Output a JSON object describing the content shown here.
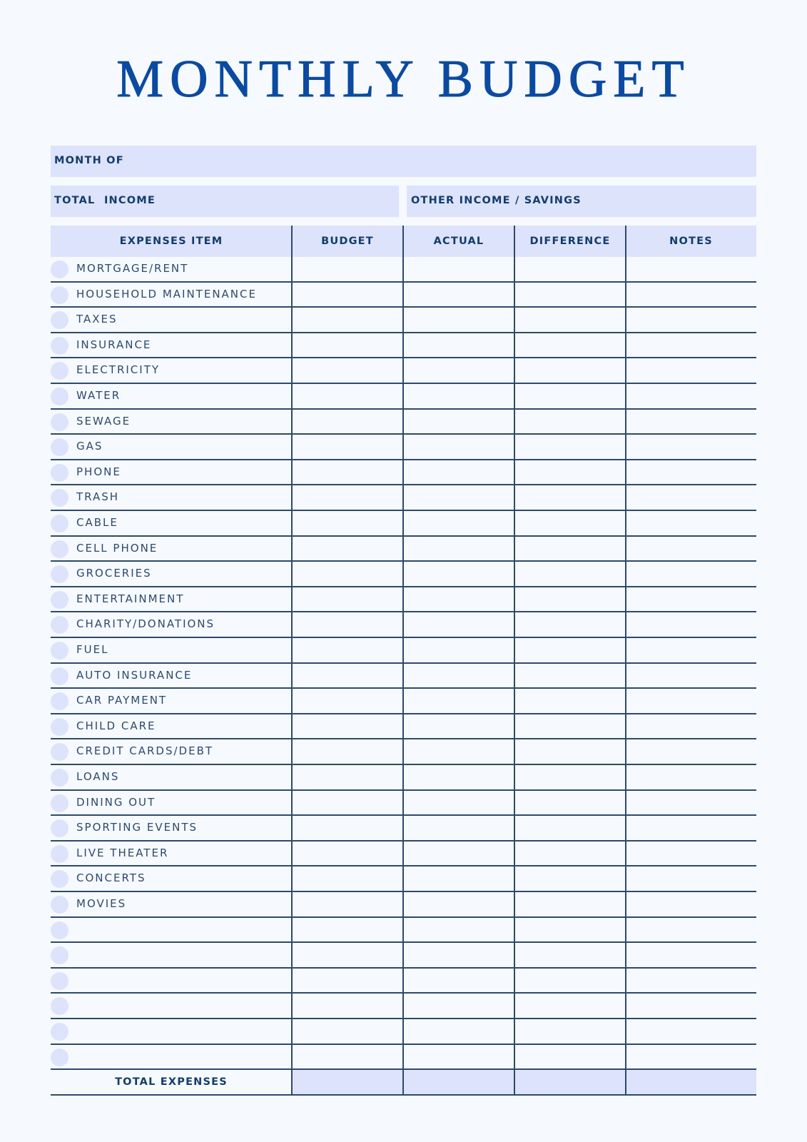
{
  "title": "MONTHLY BUDGET",
  "fields": {
    "month_of": "MONTH OF",
    "total_income": "TOTAL  INCOME",
    "other_income": "OTHER INCOME / SAVINGS"
  },
  "table": {
    "columns": [
      "EXPENSES ITEM",
      "BUDGET",
      "ACTUAL",
      "DIFFERENCE",
      "NOTES"
    ],
    "items": [
      "MORTGAGE/RENT",
      "HOUSEHOLD MAINTENANCE",
      "TAXES",
      "INSURANCE",
      "ELECTRICITY",
      "WATER",
      "SEWAGE",
      "GAS",
      "PHONE",
      "TRASH",
      "CABLE",
      "CELL PHONE",
      "GROCERIES",
      "ENTERTAINMENT",
      "CHARITY/DONATIONS",
      "FUEL",
      "AUTO INSURANCE",
      "CAR PAYMENT",
      "CHILD CARE",
      "CREDIT CARDS/DEBT",
      "LOANS",
      "DINING OUT",
      "SPORTING EVENTS",
      "LIVE THEATER",
      "CONCERTS",
      "MOVIES",
      "",
      "",
      "",
      "",
      "",
      ""
    ],
    "total_label": "TOTAL EXPENSES"
  },
  "colors": {
    "title": "#0b4aa0",
    "fill": "#dde3fb",
    "text": "#123d6b",
    "lines": "#2d4a6b",
    "background": "#f6f9fe"
  }
}
